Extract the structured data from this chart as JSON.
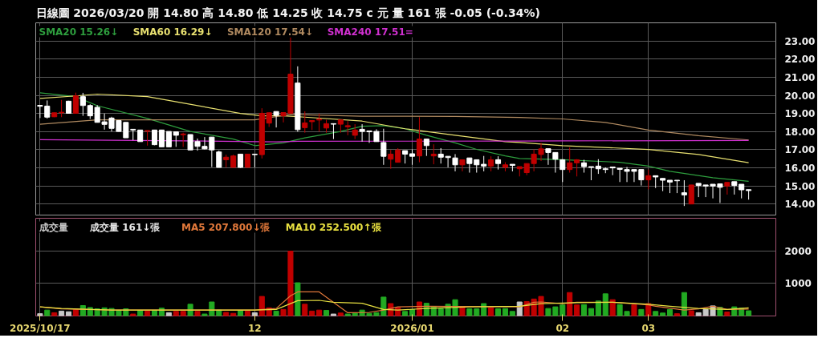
{
  "chart_data": [
    {
      "type": "candlestick",
      "title": "日線圖 2026/03/20 開 14.80 高 14.80 低 14.25 收 14.75 c 元 量 161 張 -0.05 (-0.34%)",
      "categories": [
        "2025/10/17",
        null,
        null,
        null,
        null,
        null,
        null,
        null,
        null,
        null,
        null,
        null,
        null,
        null,
        null,
        null,
        null,
        null,
        null,
        null,
        null,
        null,
        null,
        null,
        null,
        null,
        null,
        null,
        null,
        null,
        "12",
        null,
        null,
        null,
        null,
        null,
        null,
        null,
        null,
        null,
        null,
        null,
        null,
        null,
        null,
        null,
        null,
        null,
        null,
        null,
        null,
        null,
        "2026/01",
        null,
        null,
        null,
        null,
        null,
        null,
        null,
        null,
        null,
        null,
        null,
        null,
        null,
        null,
        null,
        null,
        null,
        null,
        null,
        null,
        "02",
        null,
        null,
        null,
        null,
        null,
        null,
        null,
        null,
        null,
        null,
        null,
        "03",
        null,
        null,
        null,
        null,
        null,
        null,
        null,
        null,
        null,
        null,
        null,
        null,
        null,
        null
      ],
      "ohlc": [
        [
          19.45,
          19.45,
          18.75,
          19.4
        ],
        [
          19.41,
          19.72,
          18.72,
          18.8
        ],
        [
          18.82,
          19.05,
          18.8,
          19.04
        ],
        [
          19.04,
          19.75,
          18.8,
          19.07
        ],
        [
          19.68,
          19.7,
          19.0,
          19.01
        ],
        [
          19.01,
          20.15,
          19.0,
          19.97
        ],
        [
          19.93,
          20.14,
          18.87,
          19.44
        ],
        [
          19.44,
          19.51,
          18.7,
          18.87
        ],
        [
          19.34,
          19.46,
          18.51,
          18.51
        ],
        [
          18.54,
          19.0,
          18.11,
          18.4
        ],
        [
          18.75,
          18.82,
          18.01,
          18.18
        ],
        [
          18.61,
          18.61,
          18.0,
          18.01
        ],
        [
          18.51,
          18.51,
          17.66,
          17.66
        ],
        [
          18.13,
          18.13,
          17.52,
          18.09
        ],
        [
          18.09,
          18.09,
          17.45,
          17.45
        ],
        [
          18.02,
          18.06,
          17.23,
          18.06
        ],
        [
          18.09,
          18.09,
          17.25,
          17.28
        ],
        [
          18.09,
          18.09,
          17.16,
          17.16
        ],
        [
          18.01,
          18.01,
          17.16,
          17.16
        ],
        [
          17.99,
          17.99,
          17.16,
          17.8
        ],
        [
          17.83,
          17.94,
          17.16,
          17.87
        ],
        [
          17.84,
          17.84,
          16.99,
          16.99
        ],
        [
          17.45,
          17.62,
          16.95,
          17.19
        ],
        [
          17.19,
          17.7,
          17.02,
          17.05
        ],
        [
          17.7,
          17.7,
          16.05,
          16.99
        ],
        [
          16.88,
          16.95,
          16.03,
          16.03
        ],
        [
          16.45,
          16.73,
          16.03,
          16.59
        ],
        [
          16.03,
          16.73,
          16.03,
          16.66
        ],
        [
          16.76,
          16.76,
          16.0,
          16.03
        ],
        [
          16.03,
          16.76,
          16.03,
          16.76
        ],
        [
          16.76,
          16.76,
          16.03,
          16.73
        ],
        [
          16.73,
          19.29,
          16.52,
          19.01
        ],
        [
          18.47,
          19.05,
          18.26,
          19.04
        ],
        [
          19.11,
          19.11,
          18.23,
          18.9
        ],
        [
          18.87,
          19.05,
          18.51,
          19.05
        ],
        [
          19.01,
          23.2,
          19.0,
          21.17
        ],
        [
          20.68,
          21.6,
          18.0,
          18.11
        ],
        [
          18.22,
          19.12,
          17.94,
          18.48
        ],
        [
          18.55,
          18.61,
          18.09,
          18.61
        ],
        [
          18.64,
          19.0,
          18.0,
          18.69
        ],
        [
          18.2,
          18.65,
          17.94,
          18.44
        ],
        [
          18.44,
          18.44,
          17.59,
          18.41
        ],
        [
          18.41,
          18.65,
          17.94,
          18.65
        ],
        [
          18.27,
          18.58,
          17.8,
          18.33
        ],
        [
          17.8,
          18.41,
          17.59,
          18.09
        ],
        [
          18.13,
          18.41,
          17.45,
          18.01
        ],
        [
          18.04,
          18.04,
          17.38,
          17.99
        ],
        [
          18.01,
          18.13,
          17.45,
          17.45
        ],
        [
          17.4,
          18.16,
          16.17,
          16.64
        ],
        [
          16.48,
          16.99,
          15.95,
          16.76
        ],
        [
          16.31,
          17.09,
          16.31,
          16.99
        ],
        [
          16.95,
          16.95,
          16.24,
          16.76
        ],
        [
          16.78,
          17.02,
          16.17,
          16.64
        ],
        [
          16.66,
          18.8,
          16.31,
          17.59
        ],
        [
          17.59,
          17.59,
          16.66,
          17.23
        ],
        [
          16.66,
          17.3,
          16.2,
          16.76
        ],
        [
          16.76,
          17.09,
          16.24,
          16.59
        ],
        [
          16.64,
          16.64,
          16.03,
          16.57
        ],
        [
          16.55,
          16.76,
          15.81,
          16.17
        ],
        [
          16.17,
          16.45,
          15.81,
          16.45
        ],
        [
          16.55,
          16.55,
          15.74,
          16.24
        ],
        [
          16.45,
          16.45,
          15.74,
          16.17
        ],
        [
          16.2,
          16.66,
          15.81,
          16.1
        ],
        [
          16.1,
          16.64,
          15.81,
          16.45
        ],
        [
          16.45,
          16.64,
          15.91,
          16.24
        ],
        [
          16.03,
          16.31,
          15.81,
          16.17
        ],
        [
          16.2,
          16.2,
          15.81,
          16.14
        ],
        [
          15.95,
          16.07,
          15.53,
          16.07
        ],
        [
          15.74,
          16.24,
          15.6,
          16.24
        ],
        [
          16.24,
          17.02,
          15.81,
          16.76
        ],
        [
          16.74,
          17.38,
          16.38,
          17.05
        ],
        [
          17.06,
          17.06,
          16.17,
          16.85
        ],
        [
          16.85,
          16.85,
          15.74,
          16.48
        ],
        [
          16.45,
          16.48,
          15.22,
          15.91
        ],
        [
          15.91,
          17.13,
          15.74,
          16.28
        ],
        [
          16.28,
          16.48,
          15.53,
          16.45
        ],
        [
          16.28,
          16.45,
          15.74,
          16.07
        ],
        [
          16.07,
          16.07,
          15.32,
          16.03
        ],
        [
          16.1,
          16.48,
          15.67,
          15.95
        ],
        [
          15.95,
          16.03,
          15.71,
          15.91
        ],
        [
          16.05,
          16.05,
          15.6,
          16.0
        ],
        [
          15.98,
          15.98,
          15.22,
          15.92
        ],
        [
          15.91,
          16.05,
          15.22,
          15.81
        ],
        [
          15.91,
          15.91,
          15.22,
          15.81
        ],
        [
          15.91,
          15.91,
          15.03,
          15.34
        ],
        [
          15.34,
          15.91,
          14.82,
          15.57
        ],
        [
          15.57,
          15.57,
          14.89,
          15.5
        ],
        [
          15.42,
          15.42,
          14.72,
          15.32
        ],
        [
          15.32,
          15.32,
          14.61,
          15.22
        ],
        [
          15.32,
          15.32,
          14.61,
          15.29
        ],
        [
          14.63,
          15.32,
          13.9,
          14.51
        ],
        [
          14.01,
          15.06,
          14.01,
          15.06
        ],
        [
          15.15,
          15.15,
          14.39,
          15.03
        ],
        [
          15.06,
          15.06,
          14.39,
          15.0
        ],
        [
          15.1,
          15.1,
          14.32,
          15.0
        ],
        [
          15.12,
          15.12,
          14.07,
          14.93
        ],
        [
          15.0,
          15.2,
          14.53,
          15.2
        ],
        [
          15.24,
          15.24,
          14.53,
          15.03
        ],
        [
          15.1,
          15.1,
          14.32,
          14.79
        ],
        [
          14.8,
          14.8,
          14.25,
          14.75
        ]
      ],
      "colors": [
        "#ffffff",
        "#ffffff",
        "#c00000",
        "#c00000",
        "#ffffff",
        "#c00000",
        "#ffffff",
        "#ffffff",
        "#ffffff",
        "#ffffff",
        "#ffffff",
        "#ffffff",
        "#ffffff",
        "#ffffff",
        "#ffffff",
        "#c00000",
        "#ffffff",
        "#ffffff",
        "#ffffff",
        "#ffffff",
        "#c00000",
        "#ffffff",
        "#ffffff",
        "#ffffff",
        "#ffffff",
        "#ffffff",
        "#c00000",
        "#c00000",
        "#ffffff",
        "#c00000",
        "#ffffff",
        "#c00000",
        "#c00000",
        "#ffffff",
        "#c00000",
        "#c00000",
        "#ffffff",
        "#c00000",
        "#c00000",
        "#c00000",
        "#c00000",
        "#ffffff",
        "#c00000",
        "#c00000",
        "#c00000",
        "#ffffff",
        "#ffffff",
        "#ffffff",
        "#ffffff",
        "#c00000",
        "#c00000",
        "#ffffff",
        "#ffffff",
        "#c00000",
        "#ffffff",
        "#c00000",
        "#ffffff",
        "#ffffff",
        "#ffffff",
        "#c00000",
        "#ffffff",
        "#ffffff",
        "#ffffff",
        "#c00000",
        "#ffffff",
        "#c00000",
        "#ffffff",
        "#c00000",
        "#c00000",
        "#c00000",
        "#c00000",
        "#ffffff",
        "#ffffff",
        "#ffffff",
        "#c00000",
        "#c00000",
        "#ffffff",
        "#ffffff",
        "#ffffff",
        "#ffffff",
        "#ffffff",
        "#ffffff",
        "#ffffff",
        "#ffffff",
        "#ffffff",
        "#c00000",
        "#ffffff",
        "#ffffff",
        "#ffffff",
        "#ffffff",
        "#ffffff",
        "#c00000",
        "#ffffff",
        "#ffffff",
        "#ffffff",
        "#ffffff",
        "#c00000",
        "#ffffff",
        "#ffffff",
        "#ffffff"
      ],
      "series": [
        {
          "type": "line",
          "name": "SMA20 15.26↓",
          "color": "#2e9e3e",
          "values": [
            20.14,
            null,
            null,
            null,
            null,
            19.93,
            null,
            null,
            19.43,
            null,
            null,
            null,
            null,
            null,
            null,
            18.73,
            null,
            null,
            null,
            null,
            null,
            18.01,
            null,
            null,
            null,
            null,
            null,
            17.59,
            null,
            null,
            17.23,
            null,
            null,
            null,
            17.38,
            null,
            null,
            17.66,
            null,
            null,
            null,
            null,
            18.01,
            null,
            null,
            18.3,
            null,
            null,
            18.33,
            null,
            null,
            18.16,
            null,
            null,
            17.8,
            null,
            null,
            null,
            17.38,
            null,
            null,
            17.02,
            null,
            null,
            null,
            16.66,
            null,
            16.52,
            null,
            null,
            null,
            null,
            null,
            16.45,
            null,
            null,
            null,
            null,
            null,
            null,
            null,
            16.31,
            null,
            null,
            null,
            16.1,
            null,
            null,
            15.81,
            null,
            null,
            null,
            null,
            null,
            15.46,
            null,
            null,
            null,
            null,
            15.26
          ]
        },
        {
          "type": "line",
          "name": "SMA60 16.29↓",
          "color": "#e8e070",
          "values": [
            19.83,
            null,
            null,
            null,
            null,
            19.97,
            null,
            null,
            20.07,
            null,
            null,
            null,
            null,
            null,
            null,
            19.93,
            null,
            null,
            null,
            null,
            19.58,
            null,
            null,
            null,
            null,
            null,
            null,
            null,
            19.0,
            null,
            null,
            18.87,
            null,
            null,
            18.87,
            null,
            null,
            18.8,
            null,
            null,
            null,
            null,
            null,
            null,
            null,
            18.58,
            null,
            null,
            null,
            null,
            null,
            18.16,
            null,
            null,
            null,
            null,
            null,
            null,
            17.8,
            null,
            null,
            null,
            null,
            null,
            null,
            17.45,
            null,
            17.4,
            null,
            null,
            null,
            null,
            null,
            17.23,
            null,
            null,
            null,
            null,
            null,
            null,
            null,
            null,
            null,
            null,
            null,
            17.02,
            null,
            null,
            null,
            null,
            null,
            null,
            16.74,
            null,
            null,
            null,
            null,
            null,
            null,
            16.29
          ]
        },
        {
          "type": "line",
          "name": "SMA120 17.54↓",
          "color": "#b08a60",
          "values": [
            18.41,
            null,
            null,
            null,
            null,
            null,
            null,
            null,
            18.65,
            null,
            null,
            null,
            null,
            null,
            null,
            null,
            null,
            null,
            null,
            null,
            null,
            null,
            null,
            null,
            null,
            null,
            null,
            null,
            null,
            null,
            18.65,
            null,
            null,
            null,
            null,
            18.95,
            null,
            null,
            null,
            null,
            null,
            null,
            null,
            null,
            null,
            18.85,
            null,
            null,
            null,
            null,
            null,
            null,
            null,
            null,
            null,
            null,
            null,
            null,
            18.84,
            null,
            null,
            null,
            null,
            null,
            null,
            null,
            null,
            18.78,
            null,
            null,
            null,
            null,
            null,
            18.7,
            null,
            null,
            null,
            null,
            null,
            18.51,
            null,
            null,
            null,
            null,
            null,
            18.09,
            null,
            null,
            null,
            null,
            null,
            null,
            17.78,
            null,
            null,
            null,
            null,
            null,
            null,
            17.54
          ]
        },
        {
          "type": "line",
          "name": "SMA240 17.51=",
          "color": "#d030d0",
          "values": [
            17.56,
            null,
            null,
            null,
            null,
            null,
            null,
            null,
            null,
            null,
            null,
            null,
            null,
            null,
            null,
            null,
            null,
            17.5,
            null,
            null,
            null,
            null,
            null,
            null,
            null,
            null,
            null,
            null,
            null,
            null,
            null,
            null,
            null,
            17.44,
            null,
            null,
            17.47,
            null,
            null,
            null,
            null,
            null,
            null,
            null,
            null,
            null,
            null,
            null,
            null,
            null,
            null,
            null,
            null,
            null,
            null,
            null,
            null,
            null,
            null,
            null,
            null,
            null,
            null,
            null,
            null,
            null,
            null,
            17.48,
            null,
            null,
            null,
            null,
            null,
            17.49,
            null,
            null,
            null,
            null,
            null,
            null,
            null,
            null,
            null,
            null,
            null,
            null,
            null,
            null,
            null,
            null,
            null,
            null,
            null,
            null,
            null,
            null,
            null,
            null,
            null,
            17.51
          ]
        }
      ],
      "ylim": [
        13.4,
        24.0
      ],
      "yticks": [
        {
          "value": 14,
          "label": "14.00"
        },
        {
          "value": 15,
          "label": "15.00"
        },
        {
          "value": 16,
          "label": "16.00"
        },
        {
          "value": 17,
          "label": "17.00"
        },
        {
          "value": 18,
          "label": "18.00"
        },
        {
          "value": 19,
          "label": "19.00"
        },
        {
          "value": 20,
          "label": "20.00"
        },
        {
          "value": 21,
          "label": "21.00"
        },
        {
          "value": 22,
          "label": "22.00"
        },
        {
          "value": 23,
          "label": "23.00"
        }
      ],
      "tick_labels": "y",
      "grid": true,
      "legend": "top left"
    },
    {
      "type": "bar",
      "title": "成交量",
      "categories": [
        "2025/10/17",
        null,
        null,
        null,
        null,
        null,
        null,
        null,
        null,
        null,
        null,
        null,
        null,
        null,
        null,
        null,
        null,
        null,
        null,
        null,
        null,
        null,
        null,
        null,
        null,
        null,
        null,
        null,
        null,
        null,
        "12",
        null,
        null,
        null,
        null,
        null,
        null,
        null,
        null,
        null,
        null,
        null,
        null,
        null,
        null,
        null,
        null,
        null,
        null,
        null,
        null,
        null,
        "2026/01",
        null,
        null,
        null,
        null,
        null,
        null,
        null,
        null,
        null,
        null,
        null,
        null,
        null,
        null,
        null,
        null,
        null,
        null,
        null,
        null,
        "02",
        null,
        null,
        null,
        null,
        null,
        null,
        null,
        null,
        null,
        null,
        null,
        "03",
        null,
        null,
        null,
        null,
        null,
        null,
        null,
        null,
        null,
        null,
        null,
        null,
        null,
        null
      ],
      "series": [
        {
          "type": "bar",
          "name": "成交量 161↓張",
          "values": [
            70,
            180,
            100,
            150,
            130,
            200,
            320,
            260,
            220,
            250,
            230,
            170,
            220,
            60,
            160,
            150,
            170,
            240,
            100,
            140,
            140,
            360,
            140,
            60,
            430,
            180,
            110,
            80,
            160,
            150,
            100,
            600,
            250,
            150,
            200,
            1990,
            1020,
            360,
            150,
            180,
            170,
            60,
            90,
            60,
            90,
            180,
            80,
            100,
            580,
            380,
            260,
            140,
            200,
            430,
            390,
            280,
            220,
            360,
            500,
            260,
            220,
            220,
            380,
            260,
            220,
            230,
            140,
            430,
            440,
            520,
            600,
            230,
            280,
            340,
            720,
            340,
            350,
            230,
            460,
            680,
            500,
            350,
            140,
            340,
            200,
            380,
            140,
            90,
            200,
            70,
            720,
            160,
            100,
            200,
            310,
            270,
            120,
            280,
            240,
            160
          ],
          "colors": [
            "#c8c8c8",
            "#22aa22",
            "#c00000",
            "#c8c8c8",
            "#c8c8c8",
            "#c00000",
            "#22aa22",
            "#22aa22",
            "#22aa22",
            "#22aa22",
            "#22aa22",
            "#22aa22",
            "#22aa22",
            "#c00000",
            "#22aa22",
            "#c00000",
            "#22aa22",
            "#22aa22",
            "#c8c8c8",
            "#c00000",
            "#c00000",
            "#22aa22",
            "#c00000",
            "#22aa22",
            "#22aa22",
            "#22aa22",
            "#c00000",
            "#c00000",
            "#22aa22",
            "#c00000",
            "#c8c8c8",
            "#c00000",
            "#c00000",
            "#22aa22",
            "#c00000",
            "#c00000",
            "#22aa22",
            "#c00000",
            "#c00000",
            "#c00000",
            "#22aa22",
            "#c8c8c8",
            "#c00000",
            "#22aa22",
            "#22aa22",
            "#22aa22",
            "#22aa22",
            "#22aa22",
            "#22aa22",
            "#c00000",
            "#c00000",
            "#22aa22",
            "#22aa22",
            "#c00000",
            "#22aa22",
            "#22aa22",
            "#22aa22",
            "#22aa22",
            "#22aa22",
            "#c00000",
            "#22aa22",
            "#22aa22",
            "#22aa22",
            "#c00000",
            "#22aa22",
            "#22aa22",
            "#22aa22",
            "#c8c8c8",
            "#c00000",
            "#c00000",
            "#c00000",
            "#22aa22",
            "#22aa22",
            "#22aa22",
            "#c00000",
            "#c00000",
            "#22aa22",
            "#22aa22",
            "#22aa22",
            "#22aa22",
            "#c00000",
            "#22aa22",
            "#22aa22",
            "#c00000",
            "#22aa22",
            "#c00000",
            "#22aa22",
            "#22aa22",
            "#22aa22",
            "#c00000",
            "#22aa22",
            "#c00000",
            "#c8c8c8",
            "#c8c8c8",
            "#c8c8c8",
            "#22aa22",
            "#c00000",
            "#22aa22",
            "#22aa22",
            "#22aa22"
          ]
        },
        {
          "type": "line",
          "name": "MA5 207.800↓張",
          "color": "#e0783a",
          "values": [
            280,
            null,
            null,
            220,
            null,
            null,
            null,
            null,
            null,
            null,
            180,
            null,
            null,
            null,
            null,
            null,
            null,
            null,
            null,
            null,
            null,
            null,
            null,
            null,
            null,
            null,
            null,
            null,
            null,
            null,
            180,
            null,
            null,
            230,
            null,
            620,
            740,
            null,
            null,
            740,
            null,
            null,
            null,
            100,
            null,
            null,
            110,
            null,
            180,
            null,
            280,
            null,
            null,
            null,
            300,
            null,
            null,
            null,
            null,
            null,
            null,
            null,
            null,
            null,
            null,
            null,
            null,
            280,
            null,
            420,
            430,
            null,
            null,
            380,
            null,
            420,
            null,
            null,
            null,
            null,
            420,
            null,
            null,
            null,
            null,
            340,
            300,
            null,
            null,
            null,
            180,
            null,
            220,
            null,
            300,
            null,
            200,
            null,
            null,
            210
          ]
        },
        {
          "type": "line",
          "name": "MA10 252.500↑張",
          "color": "#e8e040",
          "values": [
            280,
            null,
            null,
            230,
            null,
            null,
            null,
            null,
            null,
            null,
            180,
            null,
            null,
            null,
            null,
            null,
            null,
            null,
            null,
            null,
            null,
            null,
            null,
            null,
            null,
            null,
            null,
            null,
            null,
            null,
            180,
            null,
            null,
            200,
            null,
            null,
            470,
            null,
            null,
            480,
            null,
            420,
            null,
            null,
            null,
            390,
            null,
            null,
            200,
            null,
            180,
            null,
            null,
            null,
            230,
            null,
            null,
            null,
            null,
            null,
            280,
            null,
            null,
            null,
            null,
            null,
            null,
            300,
            null,
            null,
            380,
            null,
            null,
            null,
            null,
            410,
            null,
            null,
            null,
            null,
            420,
            null,
            null,
            null,
            null,
            360,
            null,
            null,
            300,
            null,
            null,
            null,
            230,
            null,
            null,
            null,
            200,
            null,
            null,
            250
          ]
        }
      ],
      "ylim": [
        0,
        3000
      ],
      "yticks": [
        1000,
        2000
      ],
      "grid": true,
      "legend": "top left"
    }
  ]
}
